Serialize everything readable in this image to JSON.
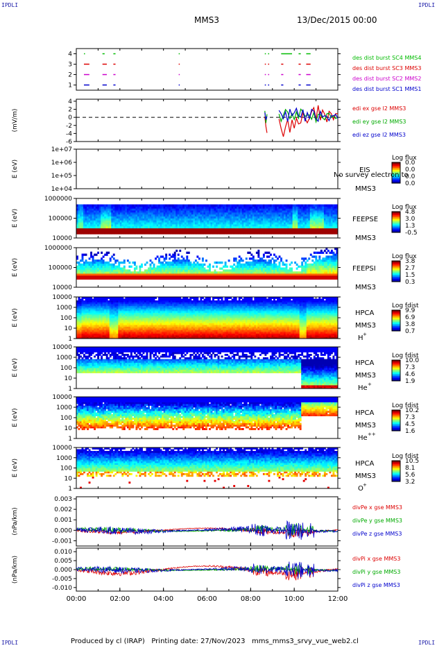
{
  "header": {
    "corner_tl": "IPDLI",
    "corner_tr": "IPDLI",
    "corner_bl": "IPDLI",
    "corner_br": "IPDLI",
    "spacecraft": "MMS3",
    "datetime": "13/Dec/2015 00:00"
  },
  "footer": {
    "text": "Produced by cl (IRAP)   Printing date: 27/Nov/2023   mms_mms3_srvy_vue_web2.cl"
  },
  "colors": {
    "sc1": "#0000cc",
    "sc2": "#cc00cc",
    "sc3": "#dd0000",
    "sc4": "#00bb00",
    "red": "#dd0000",
    "green": "#00aa00",
    "blue": "#0000cc"
  },
  "chart_data": [
    {
      "type": "scatter",
      "panel": "burst",
      "ylabel": "",
      "yticks": [
        "1",
        "2",
        "3",
        "4"
      ],
      "ylim": [
        0.5,
        4.5
      ],
      "series": [
        {
          "name": "des dist burst SC1 MMS1",
          "level": 1,
          "color": "#0000cc",
          "segments": [
            [
              0.35,
              0.6
            ],
            [
              1.2,
              1.4
            ],
            [
              1.7,
              1.8
            ],
            [
              4.7,
              4.72
            ],
            [
              8.65,
              8.7
            ],
            [
              8.8,
              8.85
            ],
            [
              9.4,
              9.5
            ],
            [
              10.2,
              10.3
            ],
            [
              10.55,
              10.75
            ]
          ]
        },
        {
          "name": "des dist burst SC2 MMS2",
          "level": 2,
          "color": "#cc00cc",
          "segments": [
            [
              0.35,
              0.6
            ],
            [
              1.2,
              1.4
            ],
            [
              1.7,
              1.8
            ],
            [
              4.7,
              4.72
            ],
            [
              8.65,
              8.7
            ],
            [
              8.8,
              8.85
            ],
            [
              9.4,
              9.5
            ],
            [
              10.2,
              10.3
            ],
            [
              10.55,
              10.75
            ]
          ]
        },
        {
          "name": "des dist burst SC3 MMS3",
          "level": 3,
          "color": "#dd0000",
          "segments": [
            [
              0.35,
              0.6
            ],
            [
              1.2,
              1.4
            ],
            [
              1.7,
              1.8
            ],
            [
              4.7,
              4.72
            ],
            [
              8.65,
              8.7
            ],
            [
              8.8,
              8.85
            ],
            [
              9.4,
              9.5
            ],
            [
              10.2,
              10.3
            ],
            [
              10.55,
              10.75
            ]
          ]
        },
        {
          "name": "des dist burst SC4 MMS4",
          "level": 4,
          "color": "#00bb00",
          "segments": [
            [
              0.35,
              0.4
            ],
            [
              1.2,
              1.3
            ],
            [
              1.7,
              1.8
            ],
            [
              4.7,
              4.72
            ],
            [
              8.65,
              8.7
            ],
            [
              8.8,
              8.85
            ],
            [
              9.4,
              9.9
            ],
            [
              10.2,
              10.3
            ],
            [
              10.55,
              10.75
            ]
          ]
        }
      ]
    },
    {
      "type": "line",
      "panel": "edi",
      "ylabel": "(mV/m)",
      "yticks": [
        "-6",
        "-4",
        "-2",
        "0",
        "2",
        "4"
      ],
      "ylim": [
        -6,
        4.5
      ],
      "series": [
        {
          "name": "edi ex gse l2 MMS3",
          "color": "#dd0000",
          "x": [
            8.65,
            8.7,
            8.75,
            9.3,
            9.4,
            9.5,
            9.6,
            9.7,
            9.8,
            9.9,
            10.0,
            10.1,
            10.2,
            10.3,
            10.4,
            10.5,
            10.6,
            10.7,
            10.8,
            10.9,
            11.0,
            11.1,
            11.2,
            11.3,
            11.4,
            11.5,
            11.6,
            11.7,
            11.8,
            11.9,
            12.0
          ],
          "y": [
            0,
            -2,
            -4,
            -1,
            -3,
            -5,
            -2,
            -1,
            -4,
            -1,
            -3,
            0,
            -2,
            -1,
            1,
            0,
            -1,
            -0.5,
            1,
            2,
            0,
            3,
            -1,
            2,
            1,
            -1,
            1,
            0.5,
            -0.5,
            1,
            0.5
          ]
        },
        {
          "name": "edi ey gse l2 MMS3",
          "color": "#00aa00",
          "x": [
            8.65,
            8.7,
            8.75,
            9.3,
            9.4,
            9.5,
            9.6,
            9.7,
            9.8,
            9.9,
            10.0,
            10.1,
            10.2,
            10.3,
            10.4,
            10.5,
            10.6,
            10.7,
            10.8,
            10.9,
            11.0,
            11.1,
            11.2,
            11.3,
            11.4,
            11.5,
            11.6,
            11.7,
            11.8,
            11.9,
            12.0
          ],
          "y": [
            2,
            -1,
            1,
            1,
            -1,
            0,
            2,
            1,
            0,
            1,
            -1,
            1,
            0,
            2,
            1,
            0,
            1,
            0.5,
            0,
            1,
            -1,
            0.5,
            1,
            0,
            -0.5,
            1,
            0.5,
            0,
            1,
            0,
            0.5
          ]
        },
        {
          "name": "edi ez gse l2 MMS3",
          "color": "#0000cc",
          "x": [
            8.65,
            8.7,
            8.75,
            9.3,
            9.4,
            9.5,
            9.6,
            9.7,
            9.8,
            9.9,
            10.0,
            10.1,
            10.2,
            10.3,
            10.4,
            10.5,
            10.6,
            10.7,
            10.8,
            10.9,
            11.0,
            11.1,
            11.2,
            11.3,
            11.4,
            11.5,
            11.6,
            11.7,
            11.8,
            11.9,
            12.0
          ],
          "y": [
            1,
            0,
            0.5,
            2,
            1,
            0,
            1,
            -1,
            2,
            0,
            1,
            2,
            1,
            0,
            2,
            -1,
            1,
            0,
            2,
            1,
            0,
            -1,
            1,
            0,
            1,
            0,
            -1,
            0.5,
            0,
            0.5,
            0
          ]
        }
      ]
    },
    {
      "type": "heatmap",
      "panel": "eis",
      "ylabel": "E (eV)",
      "yticks": [
        "1e+04",
        "1e+05",
        "1e+06",
        "1e+07"
      ],
      "ylog": true,
      "instrument": [
        "EIS",
        "MMS3"
      ],
      "overlay_text": "No survey electron to",
      "colorbar": {
        "title": "Log flux",
        "ticks": [
          "0.0",
          "0.0",
          "0.0",
          "0.0"
        ]
      }
    },
    {
      "type": "heatmap",
      "panel": "feeps_e",
      "ylabel": "E (eV)",
      "yticks": [
        "10000",
        "100000",
        "1000000"
      ],
      "ylog": true,
      "instrument": [
        "FEEPSE",
        "MMS3"
      ],
      "colorbar": {
        "title": "Log flux",
        "ticks": [
          "4.8",
          "3.0",
          "1.3",
          "-0.5"
        ]
      }
    },
    {
      "type": "heatmap",
      "panel": "feeps_i",
      "ylabel": "E (eV)",
      "yticks": [
        "10000",
        "100000",
        "1000000"
      ],
      "ylog": true,
      "instrument": [
        "FEEPSI",
        "MMS3"
      ],
      "colorbar": {
        "title": "Log flux",
        "ticks": [
          "3.8",
          "2.7",
          "1.5",
          "0.3"
        ]
      }
    },
    {
      "type": "heatmap",
      "panel": "hpca_h",
      "ylabel": "E (eV)",
      "yticks": [
        "1",
        "10",
        "100",
        "1000",
        "10000"
      ],
      "ylog": true,
      "instrument": [
        "HPCA",
        "MMS3"
      ],
      "species": "H",
      "charge": "+",
      "colorbar": {
        "title": "Log fdist",
        "ticks": [
          "9.9",
          "6.9",
          "3.8",
          "0.7"
        ]
      }
    },
    {
      "type": "heatmap",
      "panel": "hpca_he1",
      "ylabel": "E (eV)",
      "yticks": [
        "1",
        "10",
        "100",
        "1000",
        "10000"
      ],
      "ylog": true,
      "instrument": [
        "HPCA",
        "MMS3"
      ],
      "species": "He",
      "charge": "+",
      "colorbar": {
        "title": "Log fdist",
        "ticks": [
          "10.0",
          "7.3",
          "4.6",
          "1.9"
        ]
      }
    },
    {
      "type": "heatmap",
      "panel": "hpca_he2",
      "ylabel": "E (eV)",
      "yticks": [
        "1",
        "10",
        "100",
        "1000",
        "10000"
      ],
      "ylog": true,
      "instrument": [
        "HPCA",
        "MMS3"
      ],
      "species": "He",
      "charge": "++",
      "colorbar": {
        "title": "Log fdist",
        "ticks": [
          "10.2",
          "7.3",
          "4.5",
          "1.6"
        ]
      }
    },
    {
      "type": "heatmap",
      "panel": "hpca_o",
      "ylabel": "E (eV)",
      "yticks": [
        "1",
        "10",
        "100",
        "1000",
        "10000"
      ],
      "ylog": true,
      "instrument": [
        "HPCA",
        "MMS3"
      ],
      "species": "O",
      "charge": "+",
      "colorbar": {
        "title": "Log fdist",
        "ticks": [
          "10.5",
          "8.1",
          "5.6",
          "3.2"
        ]
      }
    },
    {
      "type": "line",
      "panel": "divpe",
      "ylabel": "(nPa/km)",
      "yticks": [
        "-0.001",
        "0.000",
        "0.001",
        "0.002",
        "0.003"
      ],
      "ylim": [
        -0.0015,
        0.0032
      ],
      "series": [
        {
          "name": "divPe x gse MMS3",
          "color": "#dd0000"
        },
        {
          "name": "divPe y gse MMS3",
          "color": "#00aa00"
        },
        {
          "name": "divPe z gse MMS3",
          "color": "#0000cc"
        }
      ]
    },
    {
      "type": "line",
      "panel": "divpi",
      "ylabel": "(nPa/km)",
      "yticks": [
        "-0.010",
        "-0.005",
        "0.000",
        "0.005",
        "0.010"
      ],
      "ylim": [
        -0.012,
        0.012
      ],
      "series": [
        {
          "name": "divPi x gse MMS3",
          "color": "#dd0000"
        },
        {
          "name": "divPi y gse MMS3",
          "color": "#00aa00"
        },
        {
          "name": "divPi z gse MMS3",
          "color": "#0000cc"
        }
      ]
    }
  ],
  "time_axis": {
    "range_hours": [
      0,
      12
    ],
    "tick_labels": [
      "00:00",
      "02:00",
      "04:00",
      "06:00",
      "08:00",
      "10:00",
      "12:00"
    ]
  }
}
